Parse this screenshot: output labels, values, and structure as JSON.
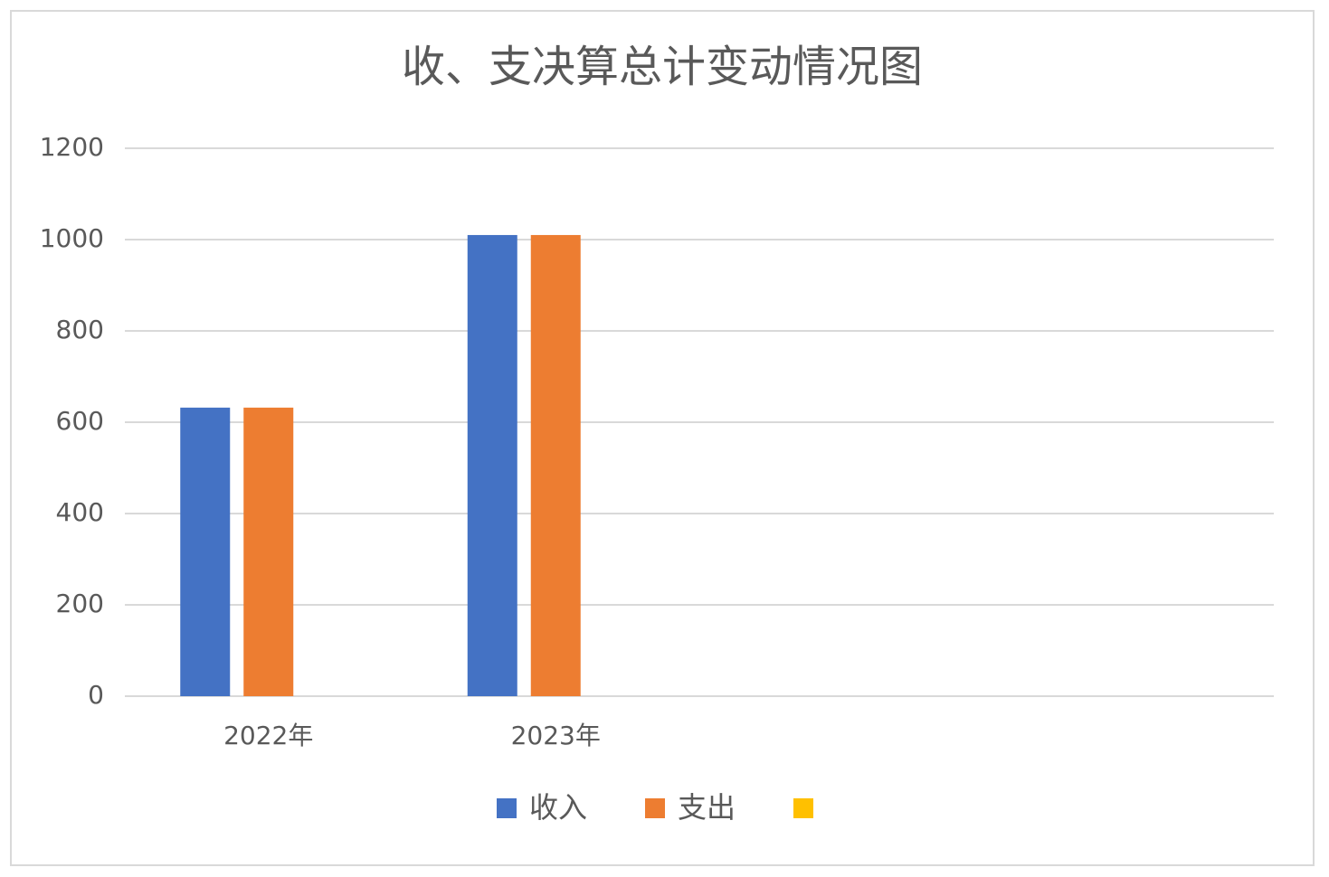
{
  "chart_data": {
    "type": "bar",
    "title": "收、支决算总计变动情况图",
    "categories": [
      "2022年",
      "2023年",
      null,
      null
    ],
    "series": [
      {
        "name": "收入",
        "color": "#4472c4",
        "values": [
          632,
          1010,
          null,
          null
        ]
      },
      {
        "name": "支出",
        "color": "#ed7d31",
        "values": [
          632,
          1010,
          null,
          null
        ]
      },
      {
        "name": null,
        "color": "#ffc000",
        "values": [
          null,
          null,
          null,
          null
        ]
      }
    ],
    "ylim": [
      0,
      1200
    ],
    "yticks": [
      0,
      200,
      400,
      600,
      800,
      1000,
      1200
    ],
    "grid": true,
    "legend": "bottom"
  }
}
